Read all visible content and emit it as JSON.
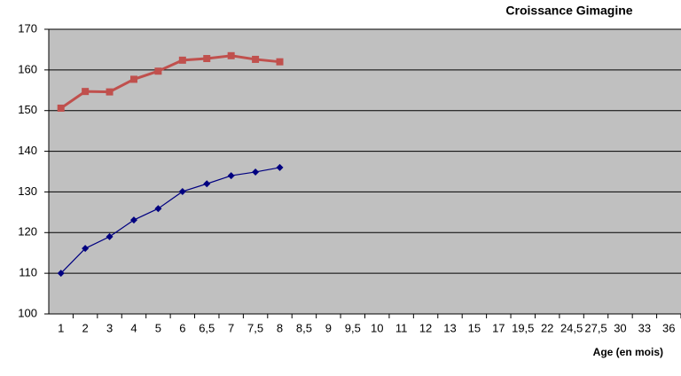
{
  "chart_data": {
    "type": "line",
    "title": "Croissance Gimagine",
    "x_label": "Age (en mois)",
    "categories": [
      "1",
      "2",
      "3",
      "4",
      "5",
      "6",
      "6,5",
      "7",
      "7,5",
      "8",
      "8,5",
      "9",
      "9,5",
      "10",
      "11",
      "12",
      "13",
      "15",
      "17",
      "19,5",
      "22",
      "24,5",
      "27,5",
      "30",
      "33",
      "36"
    ],
    "series": [
      {
        "color": "#c0504d",
        "marker": "square",
        "values": [
          150.6,
          154.7,
          154.6,
          157.7,
          159.7,
          162.4,
          162.8,
          163.5,
          162.6,
          162,
          null,
          null,
          null,
          null,
          null,
          null,
          null,
          null,
          null,
          null,
          null,
          null,
          null,
          null,
          null,
          null
        ]
      },
      {
        "color": "#000080",
        "marker": "diamond",
        "values": [
          110,
          116.1,
          119,
          123.1,
          125.9,
          130.1,
          132,
          134,
          134.9,
          136,
          null,
          null,
          null,
          null,
          null,
          null,
          null,
          null,
          null,
          null,
          null,
          null,
          null,
          null,
          null,
          null
        ]
      }
    ],
    "ylim": [
      100,
      170
    ],
    "yticks": [
      100,
      110,
      120,
      130,
      140,
      150,
      160,
      170
    ],
    "grid": true
  }
}
